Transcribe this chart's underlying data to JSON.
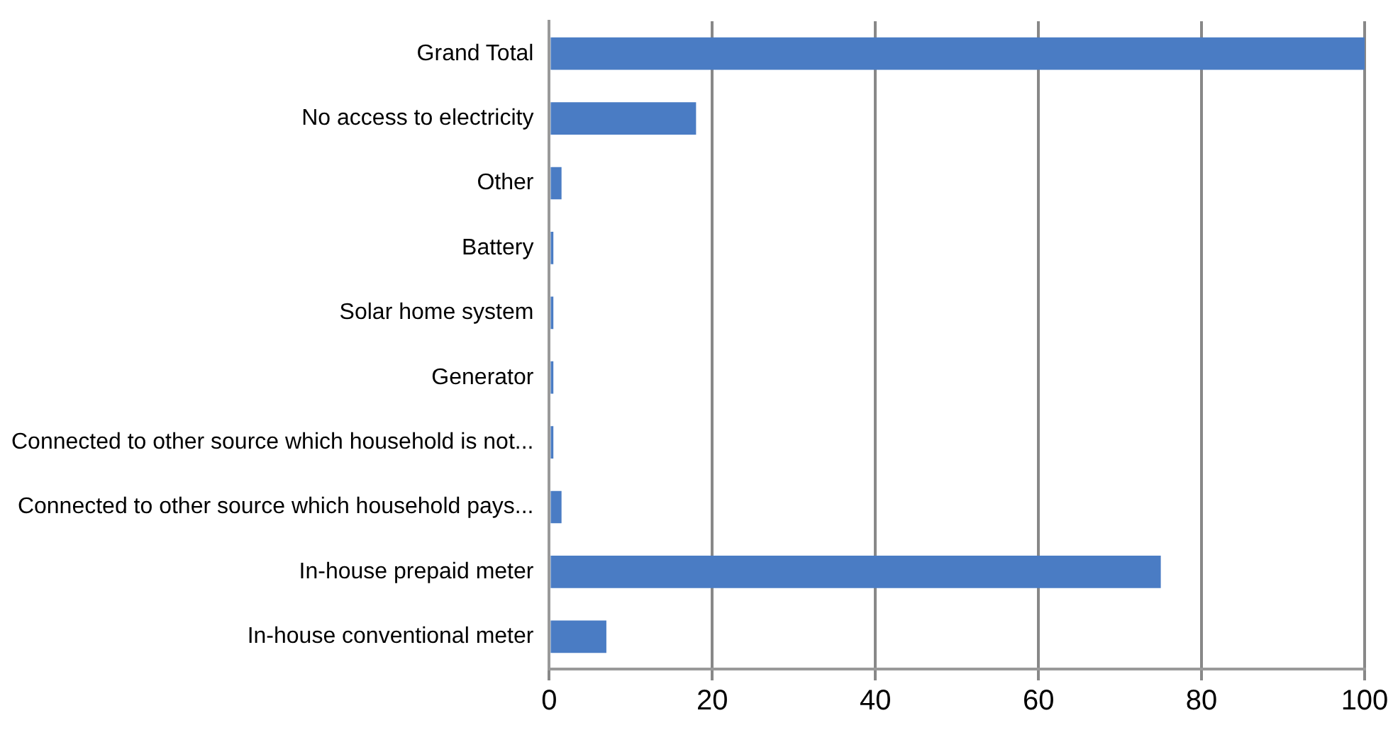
{
  "chart_data": {
    "type": "bar",
    "orientation": "horizontal",
    "categories": [
      "Grand Total",
      "No access to electricity",
      "Other",
      "Battery",
      "Solar home system",
      "Generator",
      "Connected to other source which household is not...",
      "Connected to other source which household pays...",
      "In-house prepaid meter",
      "In-house conventional meter"
    ],
    "values": [
      100,
      18,
      1.5,
      0.5,
      0.5,
      0.5,
      0.5,
      1.5,
      75,
      7
    ],
    "color": "#4a7cc4",
    "xlim": [
      0,
      100
    ],
    "xticks": [
      0,
      20,
      40,
      60,
      80,
      100
    ],
    "grid": "x",
    "legend": false
  }
}
